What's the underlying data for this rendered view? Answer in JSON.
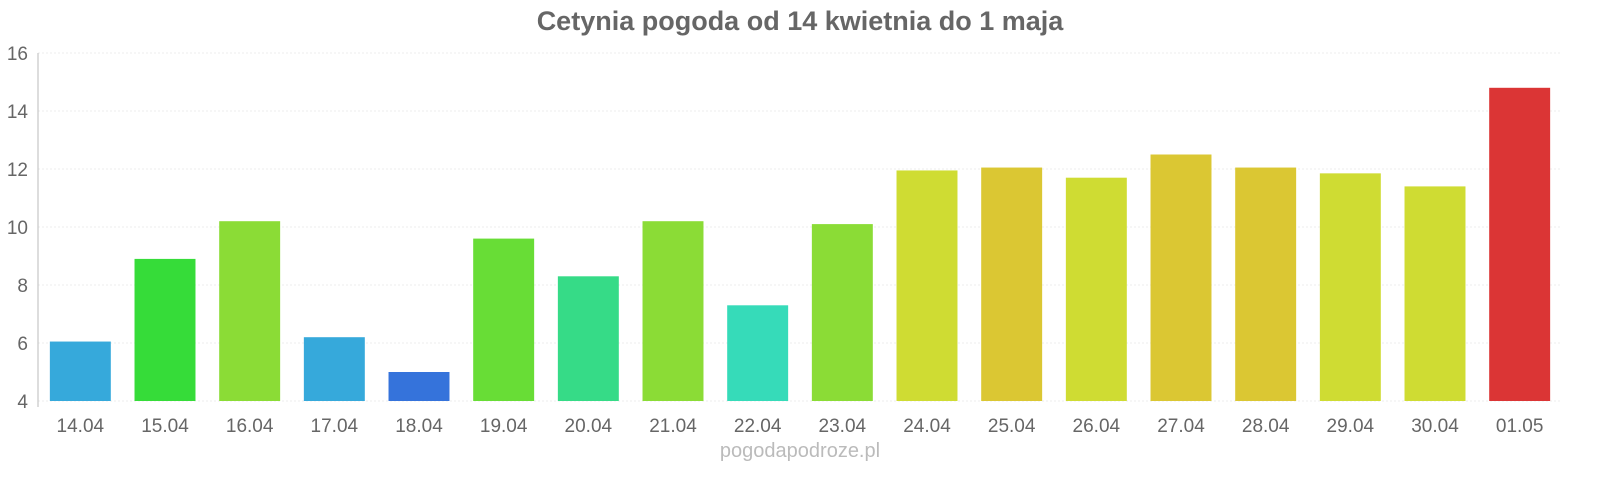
{
  "chart_data": {
    "type": "bar",
    "title": "Cetynia pogoda od 14 kwietnia do 1 maja",
    "xlabel": "",
    "ylabel": "",
    "ylim": [
      4,
      16
    ],
    "yticks": [
      4,
      6,
      8,
      10,
      12,
      14,
      16
    ],
    "grid": true,
    "categories": [
      "14.04",
      "15.04",
      "16.04",
      "17.04",
      "18.04",
      "19.04",
      "20.04",
      "21.04",
      "22.04",
      "23.04",
      "24.04",
      "25.04",
      "26.04",
      "27.04",
      "28.04",
      "29.04",
      "30.04",
      "01.05"
    ],
    "values": [
      6.05,
      8.9,
      10.2,
      6.2,
      5.0,
      9.6,
      8.3,
      10.2,
      7.3,
      10.1,
      11.95,
      12.05,
      11.7,
      12.5,
      12.05,
      11.85,
      11.4,
      14.8
    ],
    "colors": [
      "#36a9db",
      "#36dc39",
      "#8bdc36",
      "#36a9db",
      "#3573db",
      "#68dd36",
      "#36db87",
      "#8bdc36",
      "#36dbb9",
      "#8bdc36",
      "#cfdc33",
      "#dbc733",
      "#cfdc33",
      "#dbc733",
      "#dbc733",
      "#cfdc33",
      "#cfdc33",
      "#db3535"
    ]
  },
  "watermark": "pogodapodroze.pl"
}
